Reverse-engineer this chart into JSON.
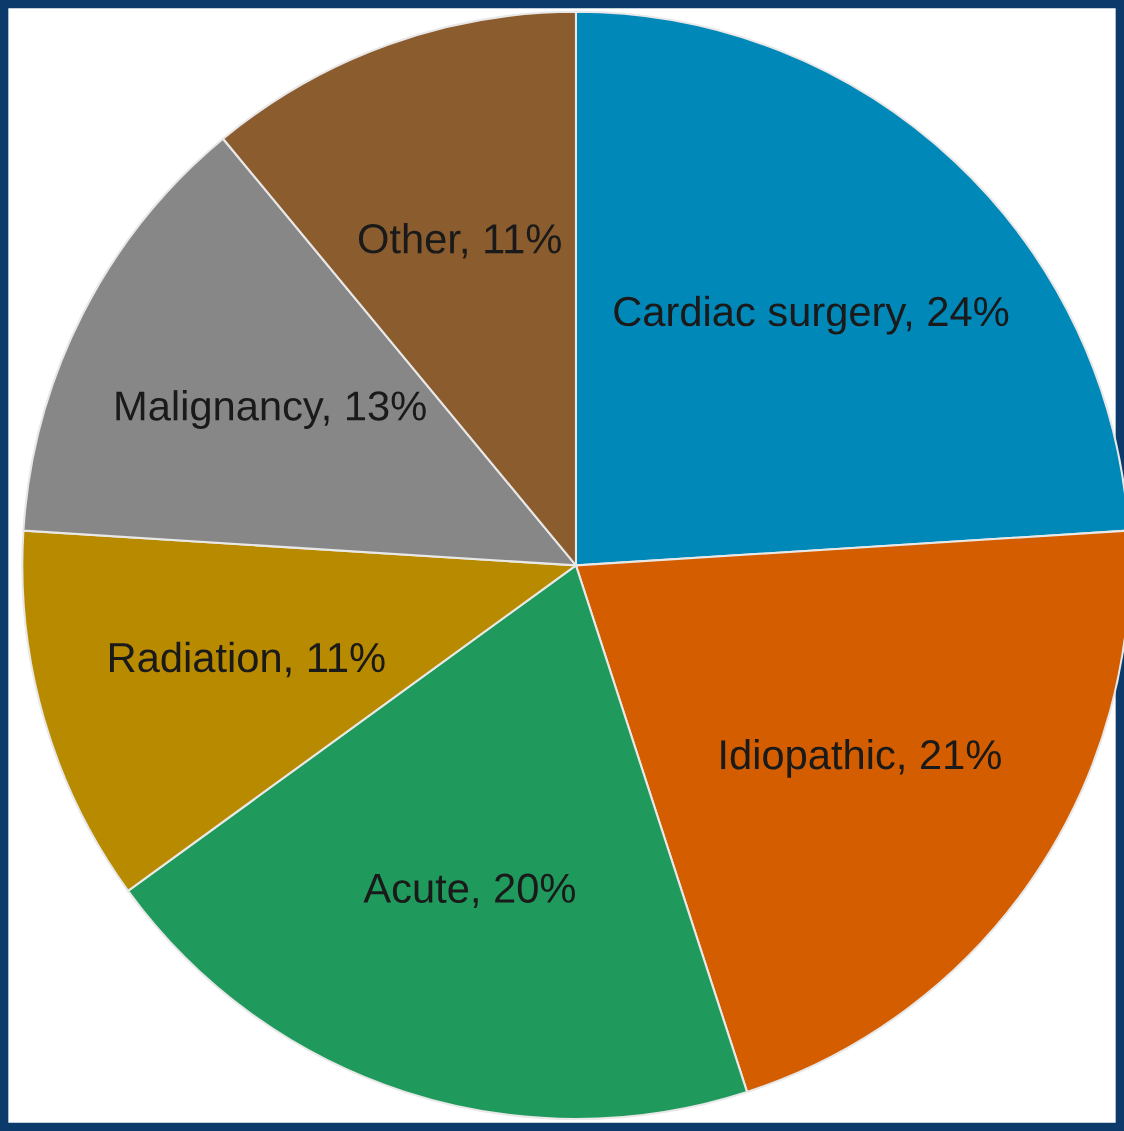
{
  "chart_data": {
    "type": "pie",
    "categories": [
      "Cardiac surgery",
      "Idiopathic",
      "Acute",
      "Radiation",
      "Malignancy",
      "Other"
    ],
    "values": [
      24,
      21,
      20,
      11,
      13,
      11
    ],
    "value_labels": [
      "24%",
      "21%",
      "20%",
      "11%",
      "13%",
      "11%"
    ],
    "colors": [
      "#0088b8",
      "#d45d00",
      "#1f9a5c",
      "#b88a00",
      "#878787",
      "#8b5c2e"
    ]
  }
}
